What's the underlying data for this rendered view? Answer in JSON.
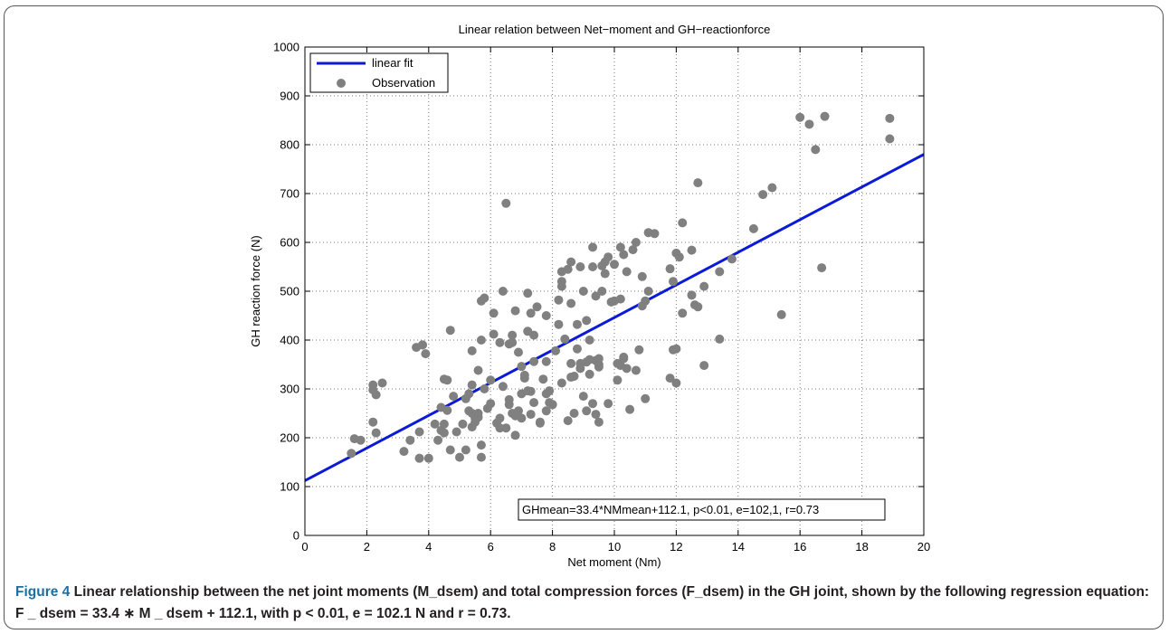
{
  "caption": {
    "label": "Figure 4",
    "text": "Linear relationship between the net joint moments (M_dsem) and total compression forces (F_dsem) in the GH joint, shown by the following regression equation: F _ dsem = 33.4 ∗ M _ dsem + 112.1, with p < 0.01, e = 102.1 N and r = 0.73."
  },
  "colors": {
    "fit_line": "#0a1ad6",
    "points": "#808080",
    "caption_label": "#1a6fa3"
  },
  "chart_data": {
    "type": "scatter",
    "title": "Linear relation between Net−moment and GH−reactionforce",
    "xlabel": "Net moment (Nm)",
    "ylabel": "GH reaction force (N)",
    "xlim": [
      0,
      20
    ],
    "ylim": [
      0,
      1000
    ],
    "xticks": [
      0,
      2,
      4,
      6,
      8,
      10,
      12,
      14,
      16,
      18,
      20
    ],
    "yticks": [
      0,
      100,
      200,
      300,
      400,
      500,
      600,
      700,
      800,
      900,
      1000
    ],
    "grid": true,
    "legend": {
      "placement": "top-left",
      "entries": [
        {
          "label": "linear fit",
          "marker": "line"
        },
        {
          "label": "Observation",
          "marker": "circle"
        }
      ]
    },
    "annotation": "GHmean=33.4*NMmean+112.1, p<0.01, e=102,1, r=0.73",
    "series": [
      {
        "name": "linear fit",
        "kind": "line",
        "slope": 33.4,
        "intercept": 112.1,
        "x": [
          0,
          20
        ]
      },
      {
        "name": "Observation",
        "kind": "scatter",
        "points": [
          [
            1.5,
            168
          ],
          [
            1.6,
            198
          ],
          [
            1.8,
            195
          ],
          [
            2.2,
            232
          ],
          [
            2.2,
            298
          ],
          [
            2.2,
            308
          ],
          [
            2.3,
            288
          ],
          [
            2.3,
            210
          ],
          [
            2.5,
            312
          ],
          [
            3.2,
            172
          ],
          [
            3.4,
            195
          ],
          [
            3.6,
            385
          ],
          [
            3.7,
            158
          ],
          [
            3.7,
            212
          ],
          [
            3.8,
            390
          ],
          [
            3.8,
            390
          ],
          [
            3.9,
            372
          ],
          [
            4.0,
            158
          ],
          [
            4.2,
            228
          ],
          [
            4.3,
            195
          ],
          [
            4.4,
            215
          ],
          [
            4.4,
            262
          ],
          [
            4.5,
            320
          ],
          [
            4.5,
            210
          ],
          [
            4.5,
            228
          ],
          [
            4.6,
            318
          ],
          [
            4.6,
            256
          ],
          [
            4.7,
            175
          ],
          [
            4.7,
            420
          ],
          [
            4.8,
            285
          ],
          [
            4.9,
            212
          ],
          [
            5.0,
            160
          ],
          [
            5.1,
            228
          ],
          [
            5.2,
            280
          ],
          [
            5.2,
            175
          ],
          [
            5.3,
            255
          ],
          [
            5.3,
            290
          ],
          [
            5.4,
            250
          ],
          [
            5.4,
            308
          ],
          [
            5.4,
            222
          ],
          [
            5.4,
            378
          ],
          [
            5.5,
            232
          ],
          [
            5.5,
            240
          ],
          [
            5.6,
            250
          ],
          [
            5.6,
            242
          ],
          [
            5.6,
            338
          ],
          [
            5.7,
            185
          ],
          [
            5.7,
            160
          ],
          [
            5.7,
            400
          ],
          [
            5.7,
            480
          ],
          [
            5.8,
            486
          ],
          [
            5.8,
            300
          ],
          [
            5.9,
            260
          ],
          [
            6.0,
            270
          ],
          [
            6.0,
            318
          ],
          [
            6.1,
            455
          ],
          [
            6.1,
            412
          ],
          [
            6.2,
            230
          ],
          [
            6.3,
            240
          ],
          [
            6.3,
            395
          ],
          [
            6.3,
            220
          ],
          [
            6.4,
            500
          ],
          [
            6.4,
            305
          ],
          [
            6.5,
            220
          ],
          [
            6.5,
            680
          ],
          [
            6.6,
            278
          ],
          [
            6.6,
            392
          ],
          [
            6.6,
            268
          ],
          [
            6.7,
            395
          ],
          [
            6.7,
            250
          ],
          [
            6.7,
            410
          ],
          [
            6.8,
            460
          ],
          [
            6.8,
            245
          ],
          [
            6.8,
            205
          ],
          [
            6.9,
            255
          ],
          [
            6.9,
            375
          ],
          [
            7.0,
            290
          ],
          [
            7.0,
            240
          ],
          [
            7.0,
            346
          ],
          [
            7.1,
            328
          ],
          [
            7.1,
            322
          ],
          [
            7.2,
            496
          ],
          [
            7.2,
            296
          ],
          [
            7.2,
            418
          ],
          [
            7.3,
            455
          ],
          [
            7.3,
            295
          ],
          [
            7.3,
            248
          ],
          [
            7.4,
            356
          ],
          [
            7.4,
            410
          ],
          [
            7.4,
            272
          ],
          [
            7.5,
            468
          ],
          [
            7.6,
            232
          ],
          [
            7.6,
            230
          ],
          [
            7.7,
            320
          ],
          [
            7.8,
            450
          ],
          [
            7.8,
            290
          ],
          [
            7.8,
            255
          ],
          [
            7.8,
            356
          ],
          [
            7.9,
            272
          ],
          [
            7.9,
            296
          ],
          [
            8.0,
            268
          ],
          [
            8.0,
            268
          ],
          [
            8.1,
            378
          ],
          [
            8.2,
            482
          ],
          [
            8.2,
            432
          ],
          [
            8.3,
            312
          ],
          [
            8.3,
            540
          ],
          [
            8.3,
            510
          ],
          [
            8.3,
            520
          ],
          [
            8.4,
            402
          ],
          [
            8.5,
            235
          ],
          [
            8.5,
            545
          ],
          [
            8.6,
            560
          ],
          [
            8.6,
            475
          ],
          [
            8.6,
            352
          ],
          [
            8.6,
            324
          ],
          [
            8.7,
            250
          ],
          [
            8.7,
            326
          ],
          [
            8.8,
            382
          ],
          [
            8.8,
            432
          ],
          [
            8.9,
            550
          ],
          [
            8.9,
            352
          ],
          [
            8.9,
            342
          ],
          [
            9.0,
            500
          ],
          [
            9.0,
            285
          ],
          [
            9.1,
            255
          ],
          [
            9.1,
            355
          ],
          [
            9.1,
            440
          ],
          [
            9.2,
            400
          ],
          [
            9.2,
            360
          ],
          [
            9.2,
            330
          ],
          [
            9.3,
            270
          ],
          [
            9.3,
            590
          ],
          [
            9.3,
            550
          ],
          [
            9.4,
            248
          ],
          [
            9.4,
            490
          ],
          [
            9.4,
            358
          ],
          [
            9.5,
            345
          ],
          [
            9.5,
            232
          ],
          [
            9.5,
            350
          ],
          [
            9.5,
            362
          ],
          [
            9.6,
            552
          ],
          [
            9.6,
            500
          ],
          [
            9.7,
            560
          ],
          [
            9.7,
            536
          ],
          [
            9.8,
            270
          ],
          [
            9.8,
            570
          ],
          [
            9.9,
            478
          ],
          [
            10.0,
            480
          ],
          [
            10.0,
            555
          ],
          [
            10.1,
            318
          ],
          [
            10.1,
            352
          ],
          [
            10.2,
            590
          ],
          [
            10.2,
            484
          ],
          [
            10.2,
            348
          ],
          [
            10.3,
            575
          ],
          [
            10.3,
            362
          ],
          [
            10.3,
            365
          ],
          [
            10.4,
            342
          ],
          [
            10.4,
            540
          ],
          [
            10.5,
            258
          ],
          [
            10.6,
            585
          ],
          [
            10.7,
            600
          ],
          [
            10.7,
            338
          ],
          [
            10.8,
            380
          ],
          [
            10.9,
            470
          ],
          [
            10.9,
            530
          ],
          [
            11.0,
            480
          ],
          [
            11.0,
            280
          ],
          [
            11.1,
            620
          ],
          [
            11.1,
            500
          ],
          [
            11.3,
            618
          ],
          [
            11.8,
            546
          ],
          [
            11.8,
            322
          ],
          [
            11.9,
            380
          ],
          [
            11.9,
            520
          ],
          [
            12.0,
            312
          ],
          [
            12.0,
            578
          ],
          [
            12.0,
            382
          ],
          [
            12.1,
            570
          ],
          [
            12.2,
            640
          ],
          [
            12.2,
            455
          ],
          [
            12.5,
            492
          ],
          [
            12.5,
            584
          ],
          [
            12.6,
            472
          ],
          [
            12.7,
            722
          ],
          [
            12.7,
            468
          ],
          [
            12.9,
            348
          ],
          [
            12.9,
            510
          ],
          [
            13.4,
            540
          ],
          [
            13.4,
            402
          ],
          [
            13.8,
            566
          ],
          [
            14.5,
            628
          ],
          [
            14.8,
            698
          ],
          [
            15.1,
            712
          ],
          [
            15.4,
            452
          ],
          [
            16.0,
            856
          ],
          [
            16.3,
            842
          ],
          [
            16.5,
            790
          ],
          [
            16.7,
            548
          ],
          [
            16.8,
            858
          ],
          [
            18.9,
            854
          ],
          [
            18.9,
            812
          ]
        ]
      }
    ]
  }
}
